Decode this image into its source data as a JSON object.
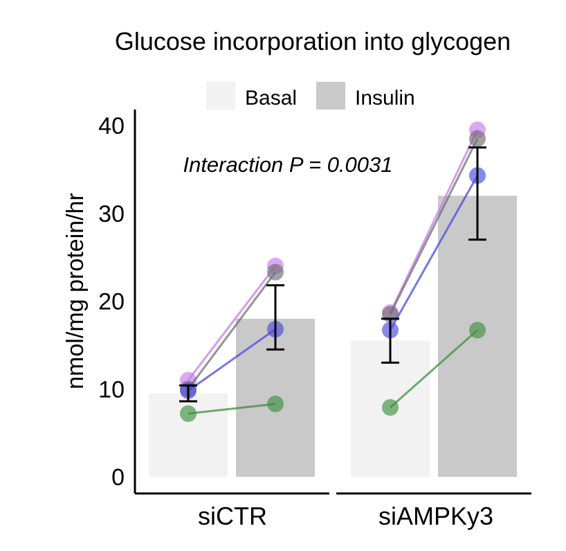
{
  "chart_data": {
    "type": "bar",
    "title": "Glucose incorporation into glycogen",
    "ylabel": "nmol/mg protein/hr",
    "xlabel": "",
    "ylim": [
      0,
      40
    ],
    "yticks": [
      0,
      10,
      20,
      30,
      40
    ],
    "groups": [
      "siCTR",
      "siAMPKy3"
    ],
    "annotation": "Interaction P = 0.0031",
    "legend": {
      "placement": "top",
      "items": [
        {
          "label": "Basal",
          "color": "#f2f2f2"
        },
        {
          "label": "Insulin",
          "color": "#c9c9c9"
        }
      ]
    },
    "series": [
      {
        "name": "Basal",
        "color": "#f2f2f2",
        "values": [
          9.5,
          15.5
        ],
        "error_low": [
          8.6,
          13.0
        ],
        "error_high": [
          10.4,
          18.0
        ]
      },
      {
        "name": "Insulin",
        "color": "#c9c9c9",
        "values": [
          18.0,
          32.0
        ],
        "error_low": [
          14.5,
          27.0
        ],
        "error_high": [
          21.8,
          37.5
        ]
      }
    ],
    "paired_points": [
      {
        "color": "#c67bea",
        "basal": [
          11.0,
          18.7
        ],
        "insulin": [
          24.0,
          39.5
        ]
      },
      {
        "color": "#6f6f6f",
        "basal": [
          10.0,
          18.5
        ],
        "insulin": [
          23.3,
          38.5
        ]
      },
      {
        "color": "#4a4adf",
        "basal": [
          9.8,
          16.7
        ],
        "insulin": [
          16.8,
          34.3
        ]
      },
      {
        "color": "#3f8f3f",
        "basal": [
          7.2,
          7.9
        ],
        "insulin": [
          8.3,
          16.7
        ]
      }
    ]
  }
}
